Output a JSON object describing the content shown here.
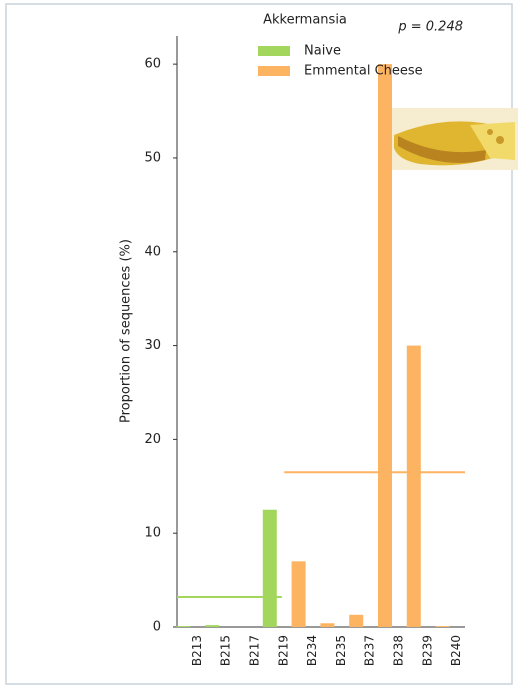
{
  "chart_data": {
    "type": "bar",
    "title": "Akkermansia",
    "annotation": "p = 0.248",
    "y_label": "Proportion of sequences (%)",
    "categories": [
      "B213",
      "B215",
      "B217",
      "B219",
      "B234",
      "B235",
      "B237",
      "B238",
      "B239",
      "B240"
    ],
    "series": [
      {
        "name": "Naive",
        "color": "#a3d65c",
        "values": [
          0.1,
          0.2,
          0,
          12.5,
          0,
          0,
          0,
          0,
          0,
          0
        ],
        "mean": 3.2
      },
      {
        "name": "Emmental Cheese",
        "color": "#fdb462",
        "values": [
          0,
          0,
          0,
          0,
          7,
          0.4,
          1.3,
          60,
          30,
          0.1
        ],
        "mean": 16.5
      }
    ],
    "ylim": [
      0,
      63
    ],
    "yticks": [
      0,
      10,
      20,
      30,
      40,
      50,
      60
    ],
    "grid": false
  }
}
